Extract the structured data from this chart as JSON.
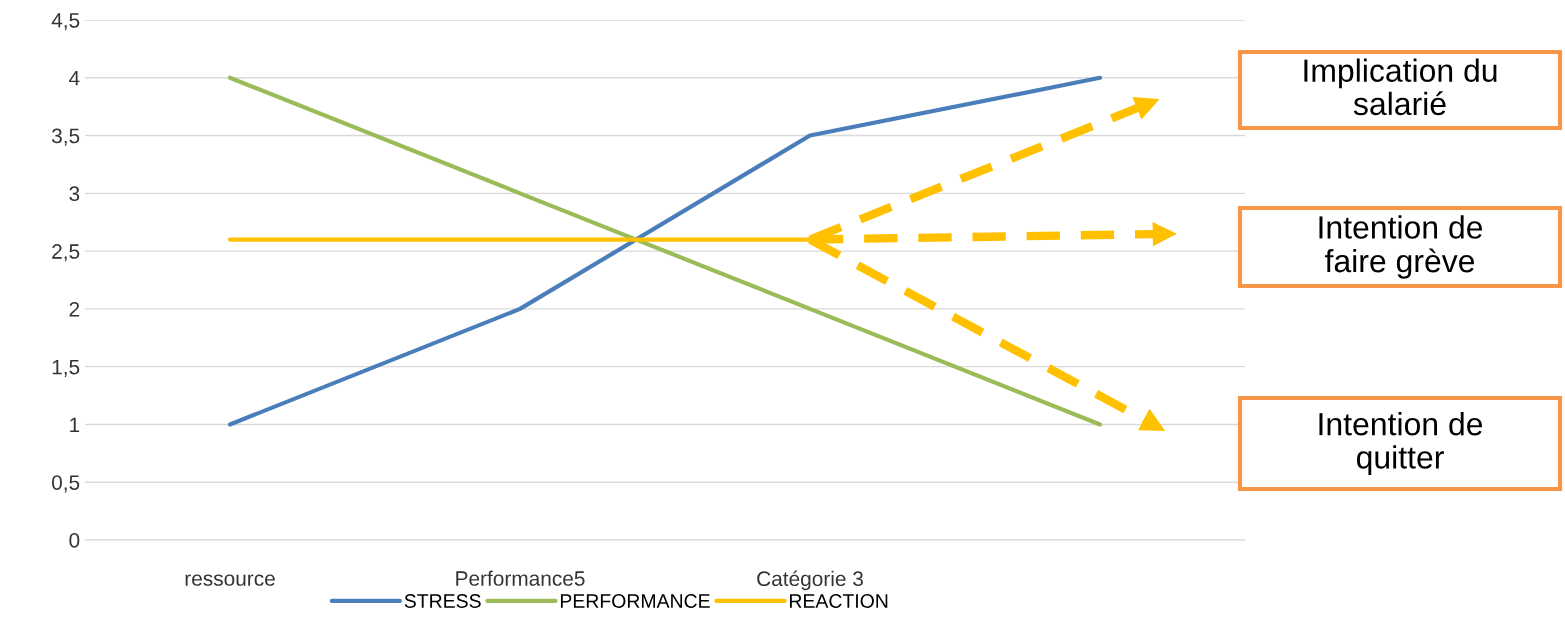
{
  "chart_data": {
    "type": "line",
    "categories": [
      "ressource",
      "Performance5",
      "Catégorie 3",
      null
    ],
    "series": [
      {
        "name": "STRESS",
        "color": "#4a7ebb",
        "values": [
          1,
          2,
          3.5,
          4
        ]
      },
      {
        "name": "PERFORMANCE",
        "color": "#9bbb59",
        "values": [
          4,
          3,
          2,
          1
        ]
      },
      {
        "name": "REACTION",
        "color": "#ffc000",
        "values": [
          2.6,
          2.6,
          2.6,
          null
        ]
      }
    ],
    "ylim": [
      0,
      4.5
    ],
    "yticks": [
      {
        "value": 0,
        "label": "0"
      },
      {
        "value": 0.5,
        "label": "0,5"
      },
      {
        "value": 1,
        "label": "1"
      },
      {
        "value": 1.5,
        "label": "1,5"
      },
      {
        "value": 2,
        "label": "2"
      },
      {
        "value": 2.5,
        "label": "2,5"
      },
      {
        "value": 3,
        "label": "3"
      },
      {
        "value": 3.5,
        "label": "3,5"
      },
      {
        "value": 4,
        "label": "4"
      },
      {
        "value": 4.5,
        "label": "4,5"
      }
    ],
    "grid": "y",
    "legend": "bottom",
    "marker": "none",
    "line_style": "solid",
    "annotations": [
      "Implication du\nsalarié",
      "Intention de\nfaire grève",
      "Intention de\nquitter"
    ]
  }
}
